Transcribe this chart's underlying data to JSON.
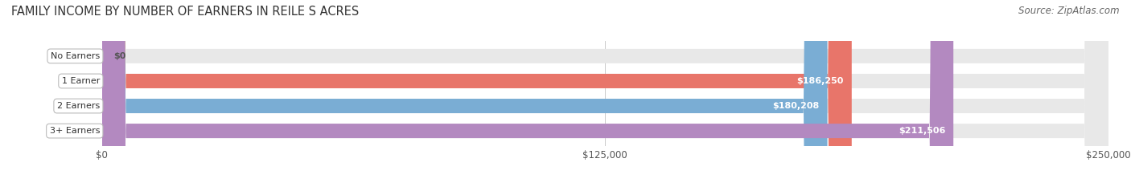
{
  "title": "FAMILY INCOME BY NUMBER OF EARNERS IN REILE S ACRES",
  "source": "Source: ZipAtlas.com",
  "categories": [
    "No Earners",
    "1 Earner",
    "2 Earners",
    "3+ Earners"
  ],
  "values": [
    0,
    186250,
    180208,
    211506
  ],
  "value_labels": [
    "$0",
    "$186,250",
    "$180,208",
    "$211,506"
  ],
  "bar_colors": [
    "#f5c98a",
    "#e8756a",
    "#7aadd4",
    "#b389c0"
  ],
  "bar_bg_color": "#e8e8e8",
  "xlim": [
    0,
    250000
  ],
  "xticks": [
    0,
    125000,
    250000
  ],
  "xtick_labels": [
    "$0",
    "$125,000",
    "$250,000"
  ],
  "title_fontsize": 10.5,
  "source_fontsize": 8.5,
  "bar_height": 0.58,
  "fig_bg_color": "#ffffff"
}
